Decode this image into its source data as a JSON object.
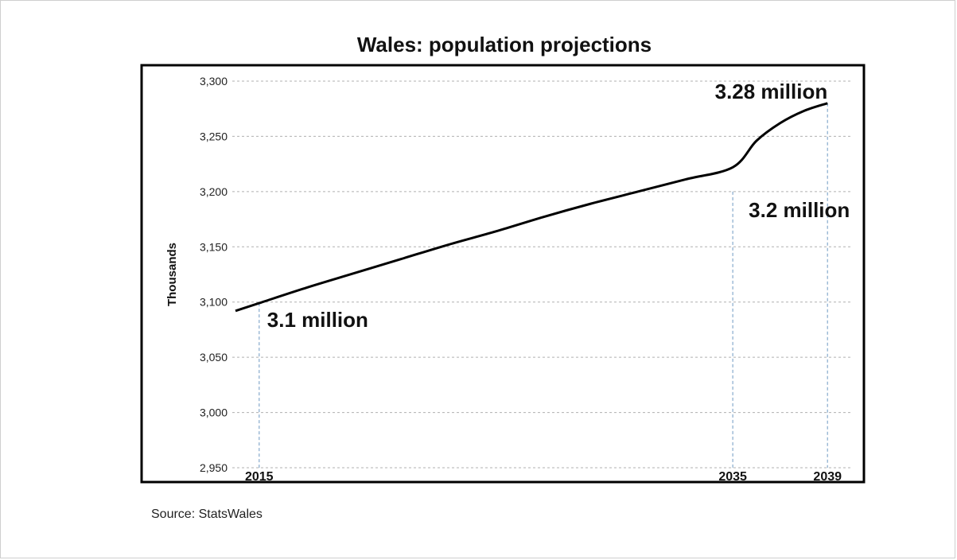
{
  "chart_data": {
    "type": "line",
    "title": "Wales: population projections",
    "ylabel": "Thousands",
    "xlabel": "",
    "xlim": [
      2014,
      2040
    ],
    "ylim": [
      2950,
      3300
    ],
    "yticks": [
      "2,950",
      "3,000",
      "3,050",
      "3,100",
      "3,150",
      "3,200",
      "3,250",
      "3,300"
    ],
    "ytick_values": [
      2950,
      3000,
      3050,
      3100,
      3150,
      3200,
      3250,
      3300
    ],
    "xticks": [
      "2015",
      "2035",
      "2039"
    ],
    "xtick_values": [
      2015,
      2035,
      2039
    ],
    "grid": true,
    "legend": "none",
    "line_color": "#000000",
    "grid_color": "#b0b0b0",
    "marker_line_color": "#8fb0d0",
    "series": [
      {
        "x": [
          2014,
          2015,
          2017,
          2019,
          2021,
          2023,
          2025,
          2027,
          2029,
          2031,
          2033,
          2035,
          2036,
          2037,
          2038,
          2039
        ],
        "values": [
          3092,
          3099,
          3113,
          3126,
          3139,
          3152,
          3164,
          3177,
          3189,
          3200,
          3211,
          3222,
          3246,
          3262,
          3273,
          3280
        ]
      }
    ],
    "annotations": [
      {
        "x": 2015,
        "y": 3099,
        "text": "3.1 million"
      },
      {
        "x": 2035,
        "y": 3200,
        "text": "3.2 million"
      },
      {
        "x": 2039,
        "y": 3280,
        "text": "3.28 million"
      }
    ]
  },
  "source": "Source: StatsWales"
}
